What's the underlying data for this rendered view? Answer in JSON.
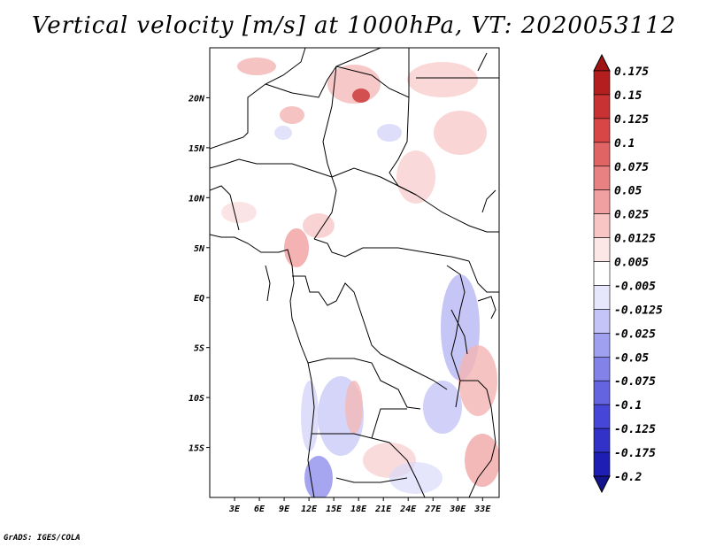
{
  "title": "Vertical velocity [m/s] at 1000hPa, VT: 2020053112",
  "credit": "GrADS: IGES/COLA",
  "map": {
    "lat_ticks": [
      "20N",
      "15N",
      "10N",
      "5N",
      "EQ",
      "5S",
      "10S",
      "15S"
    ],
    "lat_values": [
      20,
      15,
      10,
      5,
      0,
      -5,
      -10,
      -15
    ],
    "lon_ticks": [
      "3E",
      "6E",
      "9E",
      "12E",
      "15E",
      "18E",
      "21E",
      "24E",
      "27E",
      "30E",
      "33E"
    ],
    "lon_values": [
      3,
      6,
      9,
      12,
      15,
      18,
      21,
      24,
      27,
      30,
      33
    ],
    "lat_range": [
      -20,
      25
    ],
    "lon_range": [
      0,
      35
    ]
  },
  "legend": {
    "labels": [
      "0.175",
      "0.15",
      "0.125",
      "0.1",
      "0.075",
      "0.05",
      "0.025",
      "0.0125",
      "0.005",
      "-0.005",
      "-0.0125",
      "-0.025",
      "-0.05",
      "-0.075",
      "-0.1",
      "-0.125",
      "-0.175",
      "-0.2"
    ],
    "colors": [
      "#a01414",
      "#b41e1e",
      "#c83232",
      "#d84646",
      "#e06464",
      "#e88282",
      "#f0a0a0",
      "#f8c4c4",
      "#fce6e6",
      "#ffffff",
      "#e6e6fc",
      "#c4c4f8",
      "#a0a0f0",
      "#8282e8",
      "#6464e0",
      "#4646d8",
      "#3232c8",
      "#1e1eb4",
      "#14148c"
    ]
  }
}
